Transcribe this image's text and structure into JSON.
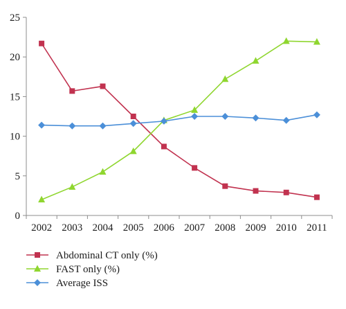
{
  "chart_data": {
    "type": "line",
    "title": "",
    "xlabel": "",
    "ylabel": "",
    "categories": [
      "2002",
      "2003",
      "2004",
      "2005",
      "2006",
      "2007",
      "2008",
      "2009",
      "2010",
      "2011"
    ],
    "ylim": [
      0,
      25
    ],
    "yticks": [
      "0",
      "5",
      "10",
      "15",
      "20",
      "25"
    ],
    "grid": false,
    "legend_position": "bottom-left",
    "series": [
      {
        "name": "Abdominal CT only (%)",
        "color": "#c1324f",
        "marker": "square",
        "values": [
          21.7,
          15.7,
          16.3,
          12.5,
          8.7,
          6.0,
          3.7,
          3.1,
          2.9,
          2.3
        ]
      },
      {
        "name": "FAST only (%)",
        "color": "#8fd62f",
        "marker": "triangle",
        "values": [
          2.0,
          3.6,
          5.5,
          8.1,
          12.0,
          13.3,
          17.2,
          19.5,
          22.0,
          21.9
        ]
      },
      {
        "name": "Average ISS",
        "color": "#4b8fd8",
        "marker": "diamond",
        "values": [
          11.4,
          11.3,
          11.3,
          11.6,
          11.9,
          12.5,
          12.5,
          12.3,
          12.0,
          12.7
        ]
      }
    ]
  }
}
